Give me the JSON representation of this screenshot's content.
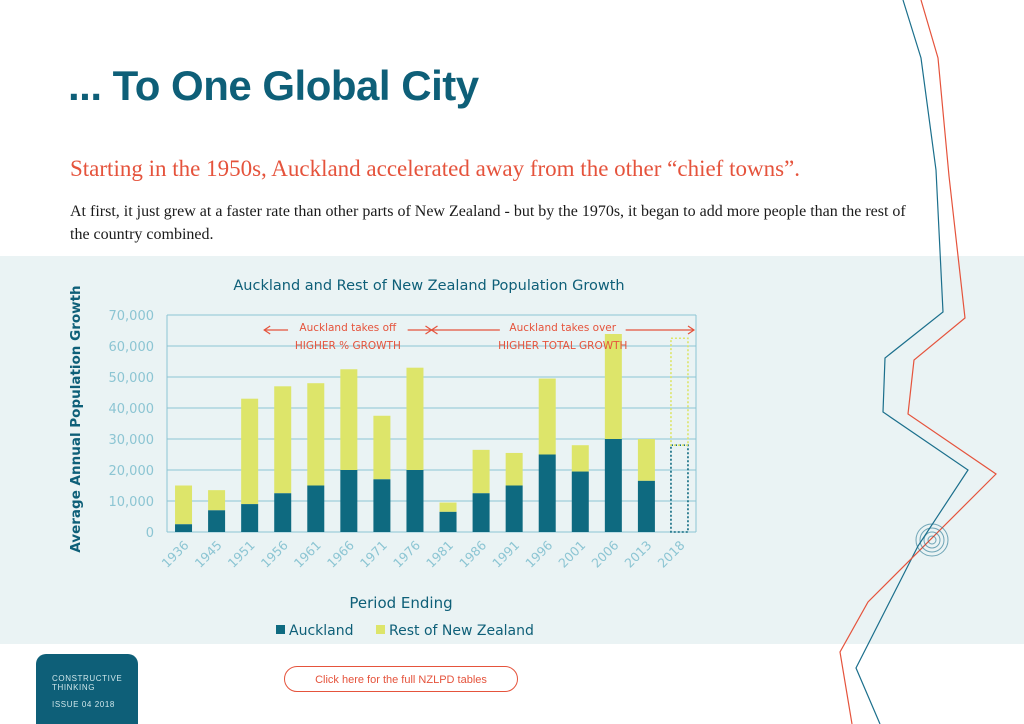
{
  "page": {
    "title": "... To One Global City",
    "subtitle": "Starting in the 1950s, Auckland accelerated away from the other “chief towns”.",
    "body": "At first, it just grew at a faster rate than other parts of New Zealand - but by the 1970s, it began to add more people than the rest of the country combined."
  },
  "footer": {
    "brand": "CONSTRUCTIVE THINKING",
    "issue": "ISSUE 04 2018",
    "link_label": "Click here for the full NZLPD tables"
  },
  "colors": {
    "title": "#0e5f78",
    "accent": "#e5533c",
    "auckland": "#0e6a80",
    "rest": "#dde56a",
    "axis": "#8cc5d3",
    "band": "#eaf3f4",
    "deco_blue": "#1b6f8c",
    "deco_red": "#e5533c"
  },
  "chart_data": {
    "type": "bar",
    "stacked": true,
    "title": "Auckland and Rest of New Zealand Population Growth",
    "xlabel": "Period Ending",
    "ylabel": "Average Annual Population Growth",
    "ylim": [
      0,
      70000
    ],
    "yticks": [
      "0",
      "10,000",
      "20,000",
      "30,000",
      "40,000",
      "50,000",
      "60,000",
      "70,000"
    ],
    "categories": [
      "1936",
      "1945",
      "1951",
      "1956",
      "1961",
      "1966",
      "1971",
      "1976",
      "1981",
      "1986",
      "1991",
      "1996",
      "2001",
      "2006",
      "2013",
      "2018"
    ],
    "series": [
      {
        "name": "Auckland",
        "values": [
          2500,
          7000,
          9000,
          12500,
          15000,
          20000,
          17000,
          20000,
          6500,
          12500,
          15000,
          25000,
          19500,
          30000,
          16500,
          28000
        ]
      },
      {
        "name": "Rest of New Zealand",
        "values": [
          12500,
          6500,
          34000,
          34500,
          33000,
          32500,
          20500,
          33000,
          3000,
          14000,
          10500,
          24500,
          8500,
          35500,
          13500,
          34500
        ]
      }
    ],
    "projected_category": "2018",
    "grid": true,
    "legend": "bottom",
    "annotations": [
      {
        "label": "Auckland takes off",
        "sublabel": "HIGHER % GROWTH",
        "from": "1956",
        "to": "1981"
      },
      {
        "label": "Auckland takes over",
        "sublabel": "HIGHER TOTAL GROWTH",
        "from": "1981",
        "to": "2018"
      }
    ]
  }
}
